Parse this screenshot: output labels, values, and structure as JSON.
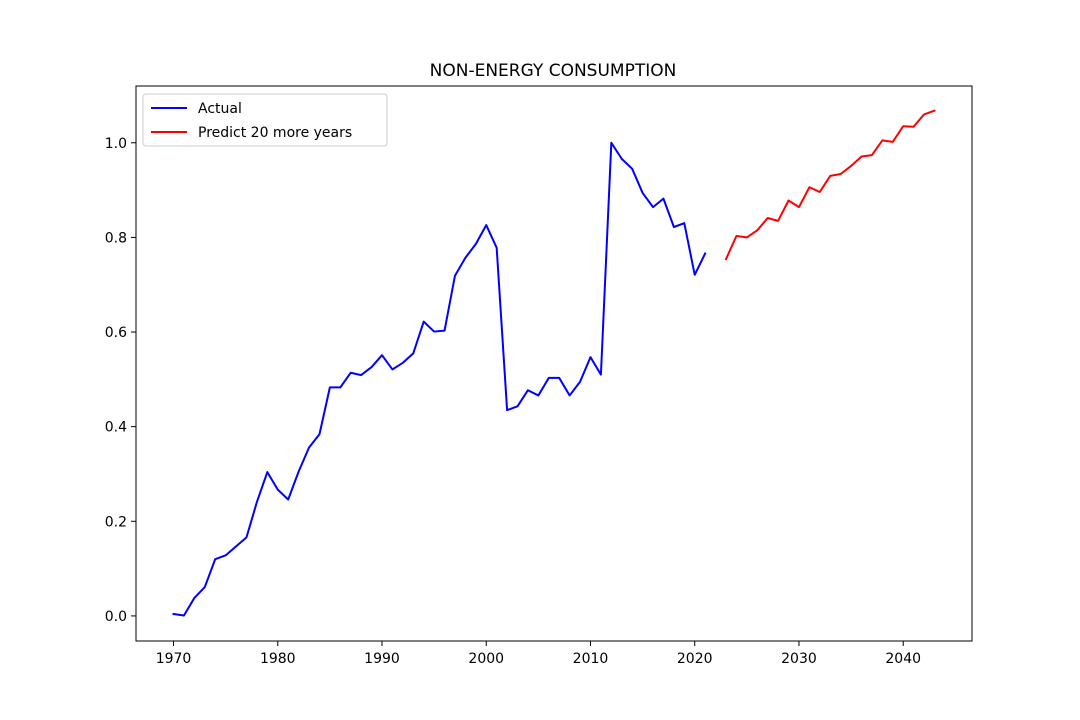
{
  "chart_data": {
    "type": "line",
    "title": "NON-ENERGY CONSUMPTION",
    "xlabel": "",
    "ylabel": "",
    "xlim": [
      1966.4,
      2046.6
    ],
    "ylim": [
      -0.053,
      1.12
    ],
    "xticks": [
      1970,
      1980,
      1990,
      2000,
      2010,
      2020,
      2030,
      2040
    ],
    "yticks": [
      0.0,
      0.2,
      0.4,
      0.6,
      0.8,
      1.0
    ],
    "grid": false,
    "legend_position": "upper-left",
    "series": [
      {
        "name": "Actual",
        "color": "#0000ff",
        "x": [
          1970,
          1971,
          1972,
          1973,
          1974,
          1975,
          1976,
          1977,
          1978,
          1979,
          1980,
          1981,
          1982,
          1983,
          1984,
          1985,
          1986,
          1987,
          1988,
          1989,
          1990,
          1991,
          1992,
          1993,
          1994,
          1995,
          1996,
          1997,
          1998,
          1999,
          2000,
          2001,
          2002,
          2003,
          2004,
          2005,
          2006,
          2007,
          2008,
          2009,
          2010,
          2011,
          2012,
          2013,
          2014,
          2015,
          2016,
          2017,
          2018,
          2019,
          2020,
          2021
        ],
        "y": [
          0.004,
          0.001,
          0.038,
          0.061,
          0.12,
          0.128,
          0.147,
          0.166,
          0.241,
          0.304,
          0.267,
          0.246,
          0.305,
          0.356,
          0.384,
          0.483,
          0.483,
          0.514,
          0.509,
          0.526,
          0.551,
          0.521,
          0.535,
          0.555,
          0.622,
          0.601,
          0.603,
          0.719,
          0.757,
          0.786,
          0.826,
          0.778,
          0.435,
          0.443,
          0.477,
          0.466,
          0.503,
          0.503,
          0.466,
          0.495,
          0.547,
          0.51,
          1.0,
          0.966,
          0.945,
          0.894,
          0.864,
          0.882,
          0.822,
          0.83,
          0.721,
          0.766
        ]
      },
      {
        "name": "Predict 20 more years",
        "color": "#ff0000",
        "x": [
          2023,
          2024,
          2025,
          2026,
          2027,
          2028,
          2029,
          2030,
          2031,
          2032,
          2033,
          2034,
          2035,
          2036,
          2037,
          2038,
          2039,
          2040,
          2041,
          2042,
          2043
        ],
        "y": [
          0.754,
          0.803,
          0.8,
          0.815,
          0.841,
          0.835,
          0.878,
          0.864,
          0.906,
          0.896,
          0.93,
          0.934,
          0.951,
          0.971,
          0.974,
          1.005,
          1.002,
          1.035,
          1.034,
          1.06,
          1.068
        ]
      }
    ]
  }
}
